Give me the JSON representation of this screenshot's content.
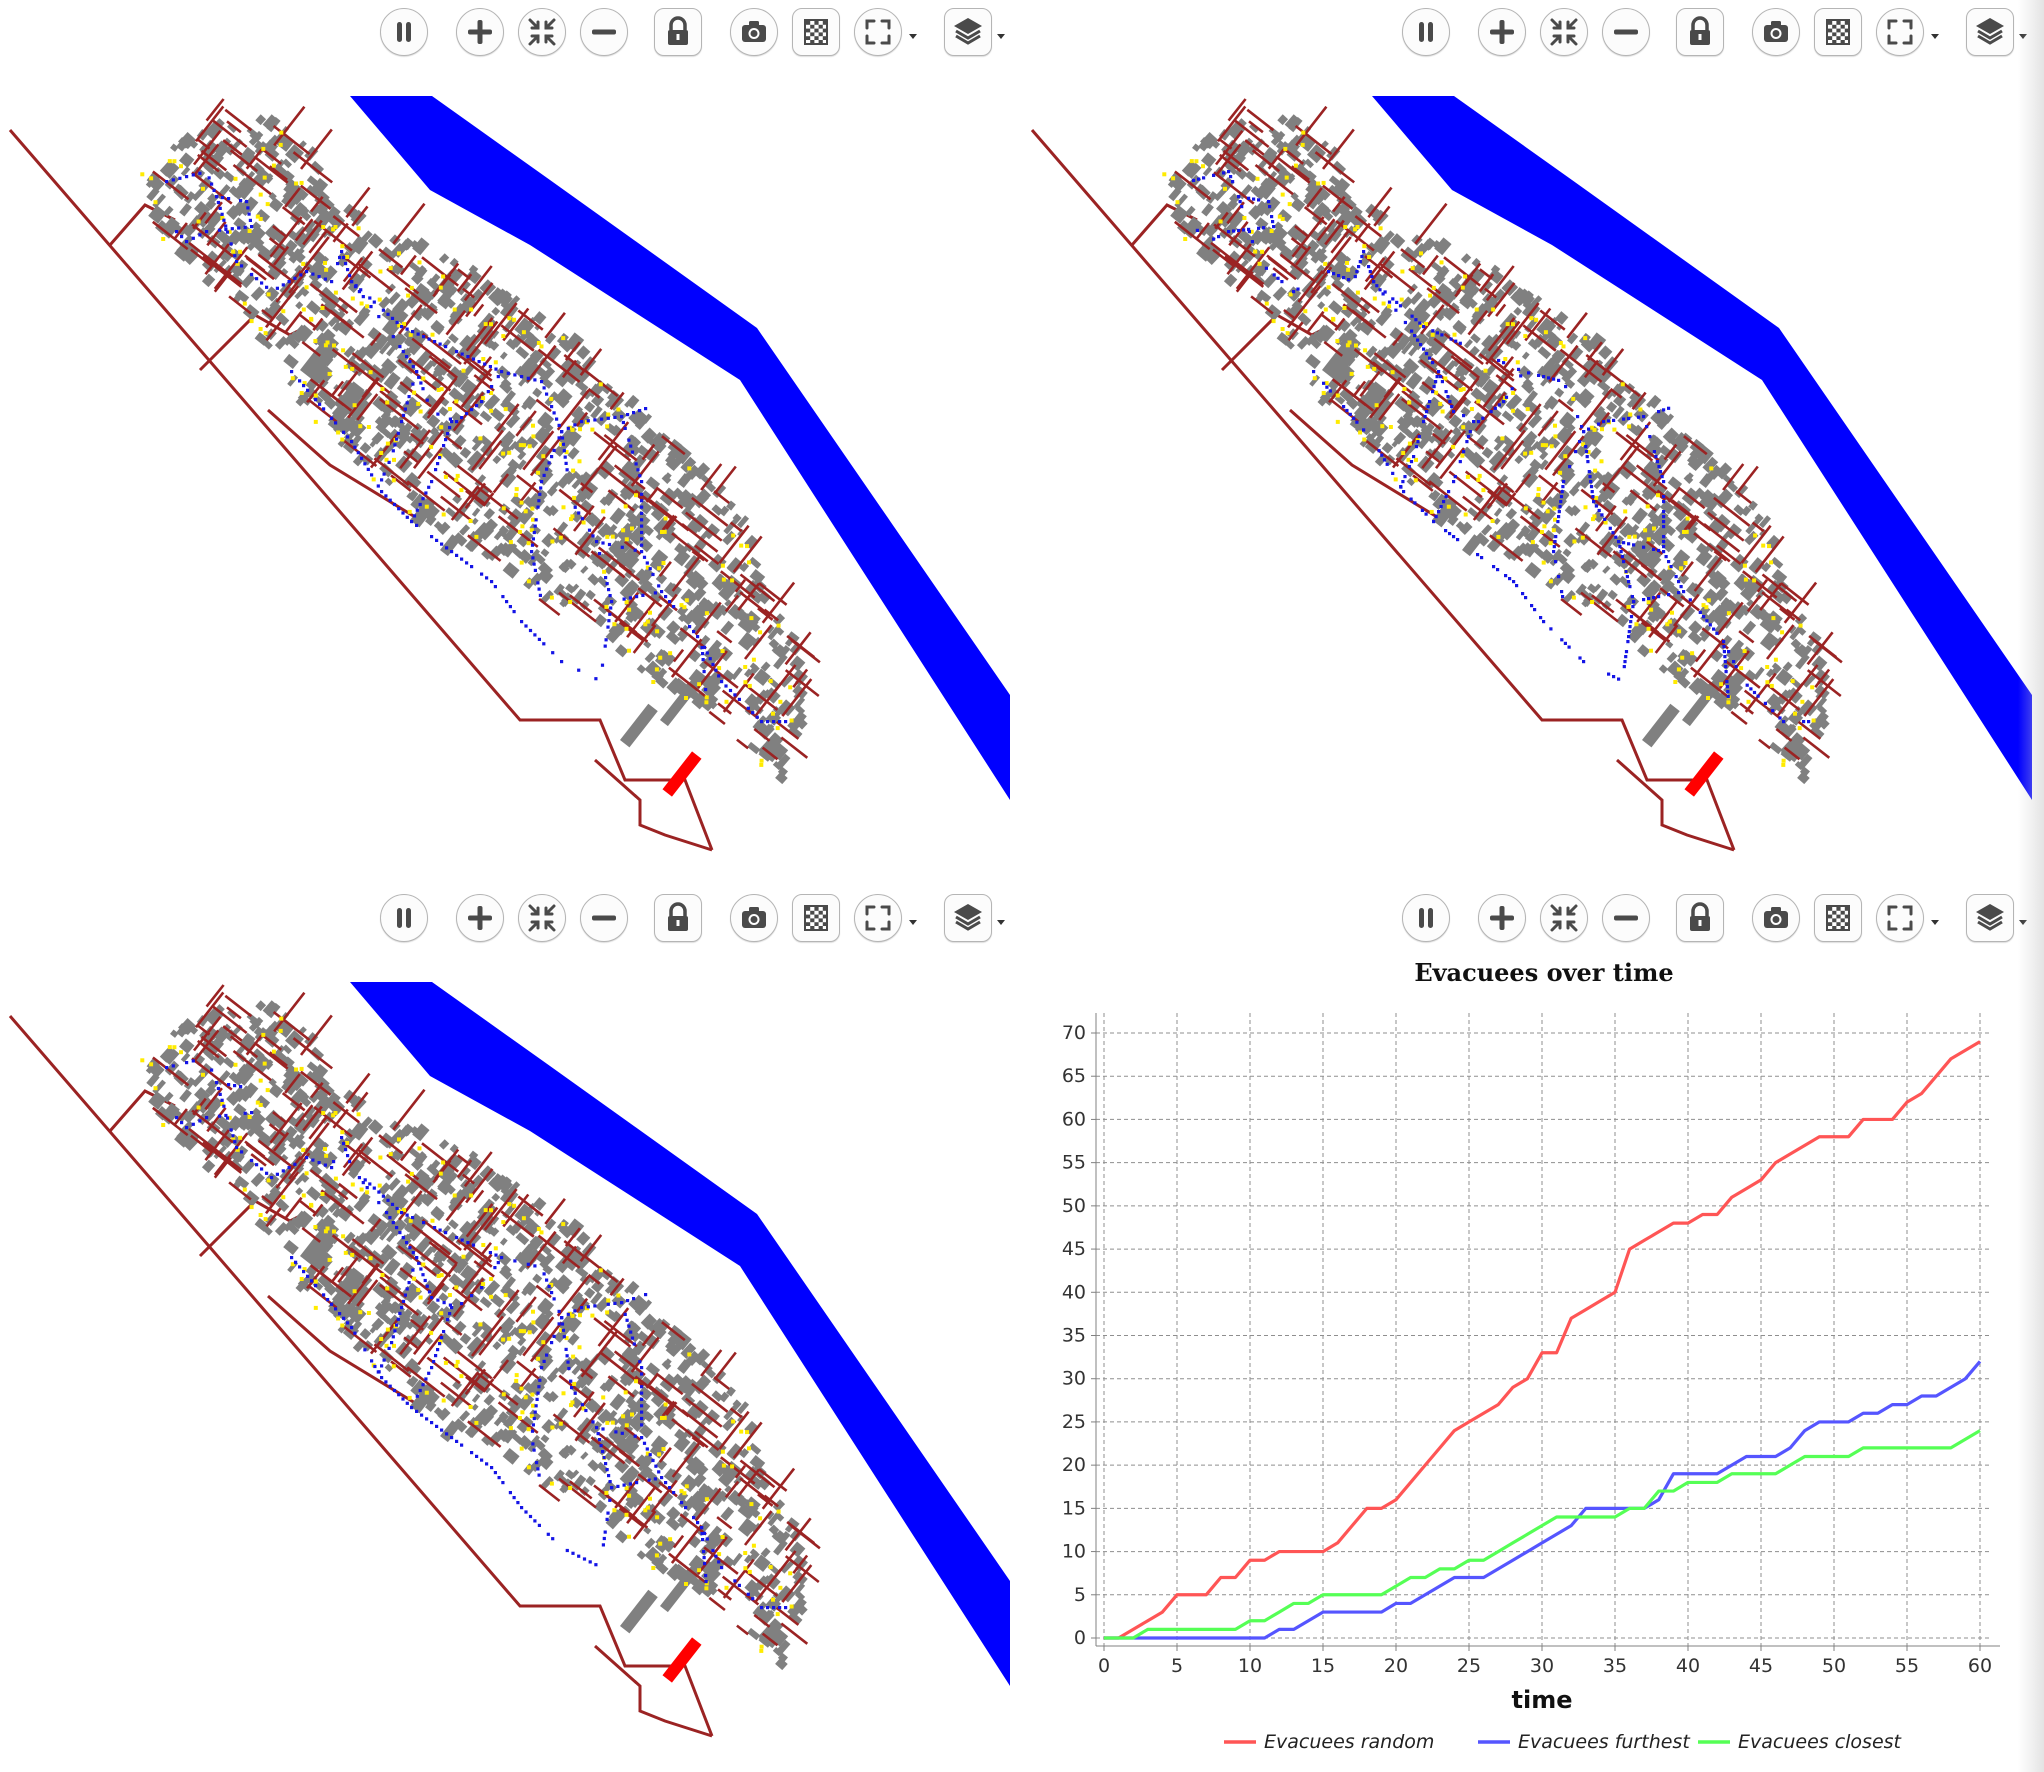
{
  "toolbar": {
    "buttons": [
      {
        "name": "pause-button",
        "icon": "pause-icon"
      },
      {
        "name": "zoom-in-button",
        "icon": "plus-icon"
      },
      {
        "name": "zoom-fit-button",
        "icon": "collapse-arrows-icon"
      },
      {
        "name": "zoom-out-button",
        "icon": "minus-icon"
      },
      {
        "name": "lock-button",
        "icon": "lock-icon"
      },
      {
        "name": "snapshot-button",
        "icon": "camera-icon"
      },
      {
        "name": "background-button",
        "icon": "checkerboard-icon"
      },
      {
        "name": "fullscreen-button",
        "icon": "expand-frame-icon"
      },
      {
        "name": "layers-button",
        "icon": "layers-icon"
      }
    ]
  },
  "map": {
    "colors": {
      "river": "#0000ff",
      "road": "#9b2323",
      "building": "#808080",
      "evacuee": "#1414e6",
      "resident": "#ffeb00",
      "shelter": "#ff0000"
    },
    "displays": [
      "random",
      "furthest",
      "closest"
    ]
  },
  "chart": {
    "title": "Evacuees over time",
    "xlabel": "time",
    "legend": [
      "Evacuees random",
      "Evacuees furthest",
      "Evacuees closest"
    ]
  },
  "chart_data": {
    "type": "line",
    "title": "Evacuees over time",
    "xlabel": "time",
    "ylabel": "",
    "xlim": [
      0,
      60
    ],
    "ylim": [
      0,
      70
    ],
    "x_ticks": [
      0,
      5,
      10,
      15,
      20,
      25,
      30,
      35,
      40,
      45,
      50,
      55,
      60
    ],
    "y_ticks": [
      0,
      5,
      10,
      15,
      20,
      25,
      30,
      35,
      40,
      45,
      50,
      55,
      60,
      65,
      70
    ],
    "grid": true,
    "legend_position": "bottom",
    "series": [
      {
        "name": "Evacuees random",
        "color": "#ff5555",
        "x": [
          0,
          1,
          2,
          3,
          4,
          5,
          6,
          7,
          8,
          9,
          10,
          11,
          12,
          13,
          14,
          15,
          16,
          17,
          18,
          19,
          20,
          21,
          22,
          23,
          24,
          25,
          26,
          27,
          28,
          29,
          30,
          31,
          32,
          33,
          34,
          35,
          36,
          37,
          38,
          39,
          40,
          41,
          42,
          43,
          44,
          45,
          46,
          47,
          48,
          49,
          50,
          51,
          52,
          53,
          54,
          55,
          56,
          57,
          58,
          59,
          60
        ],
        "y": [
          0,
          0,
          1,
          2,
          3,
          5,
          5,
          5,
          7,
          7,
          9,
          9,
          10,
          10,
          10,
          10,
          11,
          13,
          15,
          15,
          16,
          18,
          20,
          22,
          24,
          25,
          26,
          27,
          29,
          30,
          33,
          33,
          37,
          38,
          39,
          40,
          45,
          46,
          47,
          48,
          48,
          49,
          49,
          51,
          52,
          53,
          55,
          56,
          57,
          58,
          58,
          58,
          60,
          60,
          60,
          62,
          63,
          65,
          67,
          68,
          69
        ]
      },
      {
        "name": "Evacuees furthest",
        "color": "#5555ff",
        "x": [
          0,
          1,
          2,
          3,
          4,
          5,
          6,
          7,
          8,
          9,
          10,
          11,
          12,
          13,
          14,
          15,
          16,
          17,
          18,
          19,
          20,
          21,
          22,
          23,
          24,
          25,
          26,
          27,
          28,
          29,
          30,
          31,
          32,
          33,
          34,
          35,
          36,
          37,
          38,
          39,
          40,
          41,
          42,
          43,
          44,
          45,
          46,
          47,
          48,
          49,
          50,
          51,
          52,
          53,
          54,
          55,
          56,
          57,
          58,
          59,
          60
        ],
        "y": [
          0,
          0,
          0,
          0,
          0,
          0,
          0,
          0,
          0,
          0,
          0,
          0,
          1,
          1,
          2,
          3,
          3,
          3,
          3,
          3,
          4,
          4,
          5,
          6,
          7,
          7,
          7,
          8,
          9,
          10,
          11,
          12,
          13,
          15,
          15,
          15,
          15,
          15,
          16,
          19,
          19,
          19,
          19,
          20,
          21,
          21,
          21,
          22,
          24,
          25,
          25,
          25,
          26,
          26,
          27,
          27,
          28,
          28,
          29,
          30,
          32
        ]
      },
      {
        "name": "Evacuees closest",
        "color": "#55ff55",
        "x": [
          0,
          1,
          2,
          3,
          4,
          5,
          6,
          7,
          8,
          9,
          10,
          11,
          12,
          13,
          14,
          15,
          16,
          17,
          18,
          19,
          20,
          21,
          22,
          23,
          24,
          25,
          26,
          27,
          28,
          29,
          30,
          31,
          32,
          33,
          34,
          35,
          36,
          37,
          38,
          39,
          40,
          41,
          42,
          43,
          44,
          45,
          46,
          47,
          48,
          49,
          50,
          51,
          52,
          53,
          54,
          55,
          56,
          57,
          58,
          59,
          60
        ],
        "y": [
          0,
          0,
          0,
          1,
          1,
          1,
          1,
          1,
          1,
          1,
          2,
          2,
          3,
          4,
          4,
          5,
          5,
          5,
          5,
          5,
          6,
          7,
          7,
          8,
          8,
          9,
          9,
          10,
          11,
          12,
          13,
          14,
          14,
          14,
          14,
          14,
          15,
          15,
          17,
          17,
          18,
          18,
          18,
          19,
          19,
          19,
          19,
          20,
          21,
          21,
          21,
          21,
          22,
          22,
          22,
          22,
          22,
          22,
          22,
          23,
          24
        ]
      }
    ]
  }
}
